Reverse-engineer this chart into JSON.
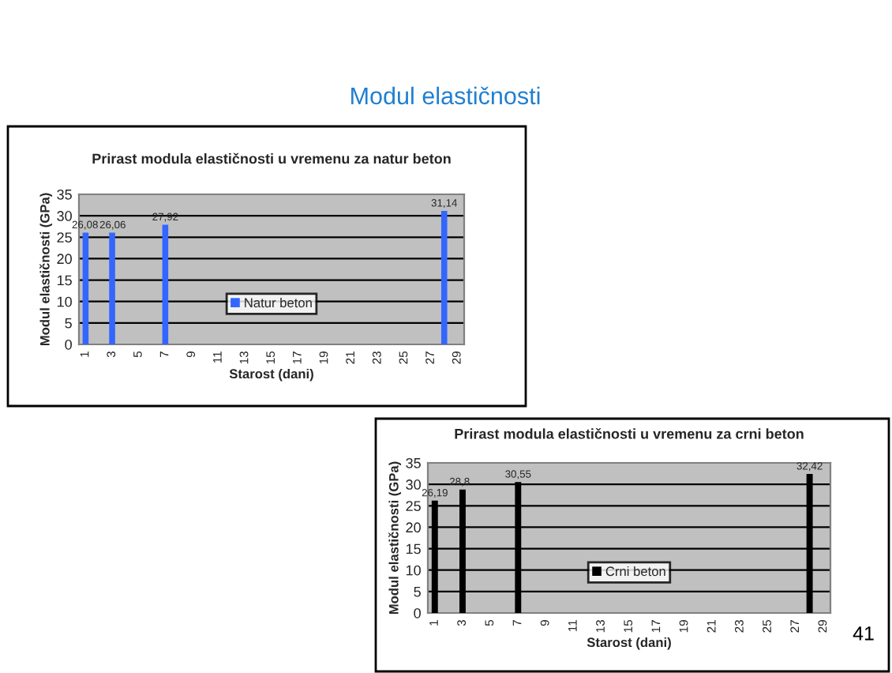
{
  "chart_data": [
    {
      "type": "bar",
      "title": "Prirast modula elastičnosti u vremenu za natur beton",
      "xlabel": "Starost (dani)",
      "ylabel": "Modul elastičnosti (GPa)",
      "annotations": [
        "Modul elastičnosti"
      ],
      "categories": [
        "1",
        null,
        "3",
        null,
        "5",
        null,
        "7",
        null,
        "9",
        null,
        "11",
        null,
        "13",
        null,
        "15",
        null,
        "17",
        null,
        "19",
        null,
        "21",
        null,
        "23",
        null,
        "25",
        null,
        "27",
        null,
        "29"
      ],
      "series": [
        {
          "name": "Natur beton",
          "color": "#3366ff",
          "values": [
            26.08,
            null,
            26.06,
            null,
            null,
            null,
            27.92,
            null,
            null,
            null,
            null,
            null,
            null,
            null,
            null,
            null,
            null,
            null,
            null,
            null,
            null,
            null,
            null,
            null,
            null,
            null,
            null,
            31.14,
            null
          ],
          "value_labels": [
            "26,08",
            null,
            "26,06",
            null,
            null,
            null,
            "27,92",
            null,
            null,
            null,
            null,
            null,
            null,
            null,
            null,
            null,
            null,
            null,
            null,
            null,
            null,
            null,
            null,
            null,
            null,
            null,
            null,
            "31,14",
            null
          ]
        }
      ],
      "ylim": [
        0,
        35
      ],
      "yticks": [
        0,
        5,
        10,
        15,
        20,
        25,
        30,
        35
      ],
      "grid": "y",
      "legend": "bottom"
    },
    {
      "type": "bar",
      "title": "Prirast modula elastičnosti u vremenu za crni beton",
      "xlabel": "Starost (dani)",
      "ylabel": "Modul elastičnosti (GPa)",
      "annotations": [
        "41"
      ],
      "categories": [
        "1",
        null,
        "3",
        null,
        "5",
        null,
        "7",
        null,
        "9",
        null,
        "11",
        null,
        "13",
        null,
        "15",
        null,
        "17",
        null,
        "19",
        null,
        "21",
        null,
        "23",
        null,
        "25",
        null,
        "27",
        null,
        "29"
      ],
      "series": [
        {
          "name": "Crni beton",
          "color": "#000000",
          "values": [
            26.19,
            null,
            28.8,
            null,
            null,
            null,
            30.55,
            null,
            null,
            null,
            null,
            null,
            null,
            null,
            null,
            null,
            null,
            null,
            null,
            null,
            null,
            null,
            null,
            null,
            null,
            null,
            null,
            32.42,
            null
          ],
          "value_labels": [
            "26,19",
            null,
            "28,8",
            null,
            null,
            null,
            "30,55",
            null,
            null,
            null,
            null,
            null,
            null,
            null,
            null,
            null,
            null,
            null,
            null,
            null,
            null,
            null,
            null,
            null,
            null,
            null,
            null,
            "32,42",
            null
          ]
        }
      ],
      "ylim": [
        0,
        35
      ],
      "yticks": [
        0,
        5,
        10,
        15,
        20,
        25,
        30,
        35
      ],
      "grid": "y",
      "legend": "bottom"
    }
  ]
}
